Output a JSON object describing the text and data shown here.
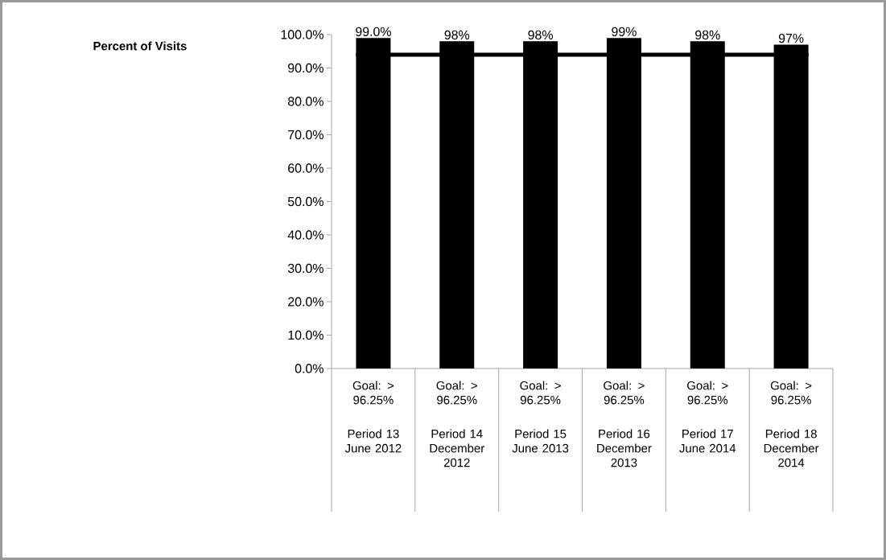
{
  "chart_data": {
    "type": "bar",
    "categories": [
      "Period 13 June 2012",
      "Period 14 December 2012",
      "Period 15 June 2013",
      "Period 16 December 2013",
      "Period 17 June 2014",
      "Period 18 December 2014"
    ],
    "values": [
      99,
      98,
      98,
      99,
      98,
      97
    ],
    "value_labels": [
      "99.0%",
      "98%",
      "98%",
      "99%",
      "98%",
      "97%"
    ],
    "color": "#000000",
    "ylim": [
      0,
      100
    ],
    "yticks": [
      {
        "value": 0,
        "label": "0.0%"
      },
      {
        "value": 10,
        "label": "10.0%"
      },
      {
        "value": 20,
        "label": "20.0%"
      },
      {
        "value": 30,
        "label": "30.0%"
      },
      {
        "value": 40,
        "label": "40.0%"
      },
      {
        "value": 50,
        "label": "50.0%"
      },
      {
        "value": 60,
        "label": "60.0%"
      },
      {
        "value": 70,
        "label": "70.0%"
      },
      {
        "value": 80,
        "label": "80.0%"
      },
      {
        "value": 90,
        "label": "90.0%"
      },
      {
        "value": 100,
        "label": "100.0%"
      }
    ],
    "ref_lines": [
      {
        "axis": "y",
        "value": 94,
        "color": "#000000"
      }
    ],
    "annotations": [
      "Percent of Visits",
      "Goal: > 96.25%",
      "Goal: > 96.25%",
      "Goal: > 96.25%",
      "Goal: > 96.25%",
      "Goal: > 96.25%",
      "Goal: > 96.25%"
    ],
    "grid": false
  }
}
